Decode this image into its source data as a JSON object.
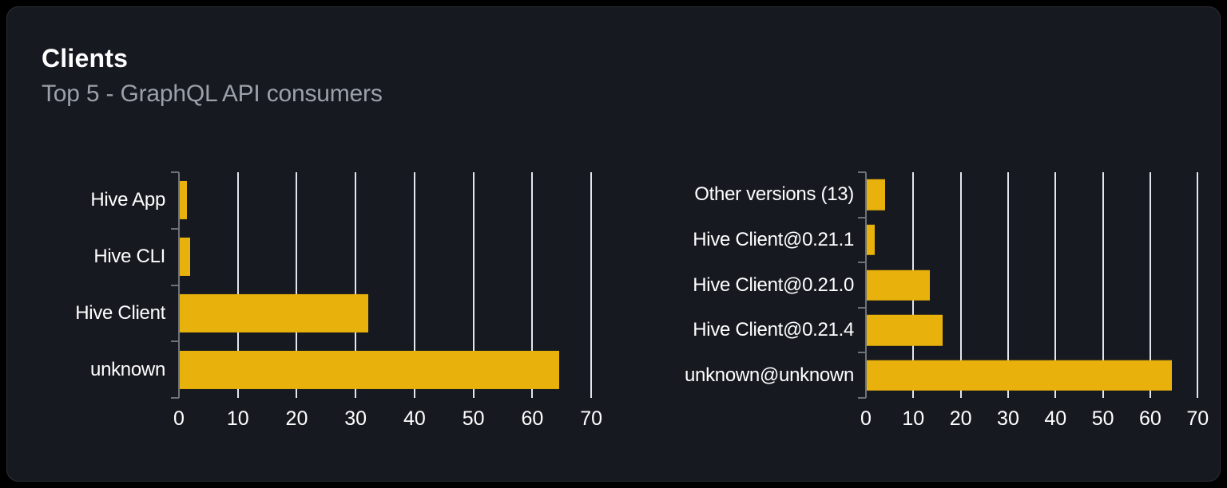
{
  "header": {
    "title": "Clients",
    "subtitle": "Top 5 - GraphQL API consumers"
  },
  "colors": {
    "page_bg": "#000000",
    "card_bg": "#161920",
    "card_border": "#2c2f36",
    "title_text": "#ffffff",
    "subtitle_text": "#9ba1a8",
    "axis": "#6e7278",
    "gridline": "#e3e6ee",
    "tick_label": "#ffffff",
    "bar": "#e8b10c"
  },
  "chart_data": [
    {
      "type": "bar",
      "orientation": "horizontal",
      "title": "",
      "categories": [
        "Hive App",
        "Hive CLI",
        "Hive Client",
        "unknown"
      ],
      "values": [
        1.3,
        1.9,
        32.2,
        64.5
      ],
      "xlabel": "",
      "ylabel": "",
      "xlim": [
        0,
        70.8
      ],
      "xticks": [
        0,
        10,
        20,
        30,
        40,
        50,
        60,
        70
      ],
      "grid": true,
      "legend": false,
      "bar_color": "#e8b10c",
      "bar_band_ratio": 0.68
    },
    {
      "type": "bar",
      "orientation": "horizontal",
      "title": "",
      "categories": [
        "Other versions (13)",
        "Hive Client@0.21.1",
        "Hive Client@0.21.0",
        "Hive Client@0.21.4",
        "unknown@unknown"
      ],
      "values": [
        4,
        1.9,
        13.5,
        16.2,
        64.5
      ],
      "xlabel": "",
      "ylabel": "",
      "xlim": [
        0,
        70.8
      ],
      "xticks": [
        0,
        10,
        20,
        30,
        40,
        50,
        60,
        70
      ],
      "grid": true,
      "legend": false,
      "bar_color": "#e8b10c",
      "bar_band_ratio": 0.68
    }
  ]
}
